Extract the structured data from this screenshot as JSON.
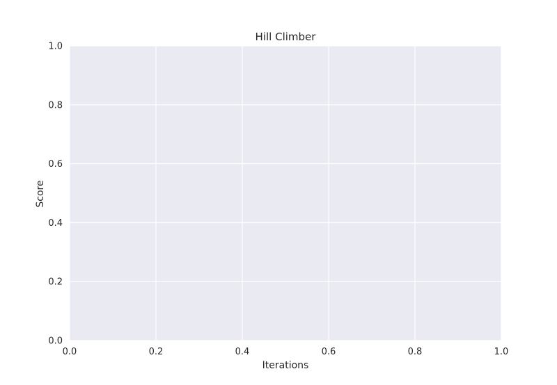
{
  "chart_data": {
    "type": "line",
    "title": "Hill Climber",
    "xlabel": "Iterations",
    "ylabel": "Score",
    "xlim": [
      0.0,
      1.0
    ],
    "ylim": [
      0.0,
      1.0
    ],
    "xticks": [
      0.0,
      0.2,
      0.4,
      0.6,
      0.8,
      1.0
    ],
    "yticks": [
      0.0,
      0.2,
      0.4,
      0.6,
      0.8,
      1.0
    ],
    "xtick_labels": [
      "0.0",
      "0.2",
      "0.4",
      "0.6",
      "0.8",
      "1.0"
    ],
    "ytick_labels": [
      "0.0",
      "0.2",
      "0.4",
      "0.6",
      "0.8",
      "1.0"
    ],
    "grid": true,
    "series": []
  },
  "colors": {
    "plot_background": "#eaeaf2",
    "grid": "#ffffff",
    "text": "#262626"
  }
}
